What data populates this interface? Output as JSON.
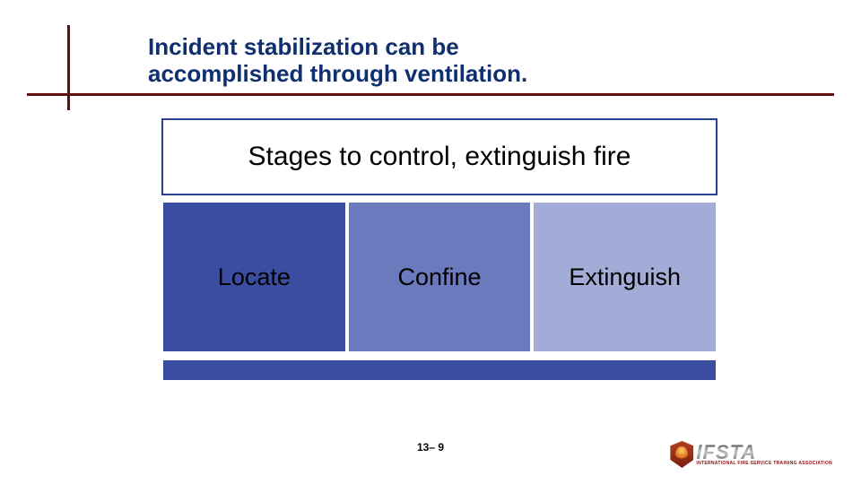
{
  "title": "Incident stabilization can be accomplished through ventilation.",
  "title_color": "#0f2f6f",
  "rule_color": "#5f0f0f",
  "diagram": {
    "banner_text": "Stages to control, extinguish fire",
    "banner_bg": "#ffffff",
    "banner_border": "#2b3f8f",
    "banner_fontsize": 30,
    "box_fontsize": 27,
    "boxes": [
      {
        "label": "Locate",
        "bg": "#3a4da0"
      },
      {
        "label": "Confine",
        "bg": "#6b79bd"
      },
      {
        "label": "Extinguish",
        "bg": "#a3acd6"
      }
    ],
    "footer_bar_bg": "#3a4da0"
  },
  "page_number": "13– 9",
  "logo": {
    "name": "IFSTA",
    "subtitle": "INTERNATIONAL FIRE SERVICE TRAINING ASSOCIATION"
  }
}
